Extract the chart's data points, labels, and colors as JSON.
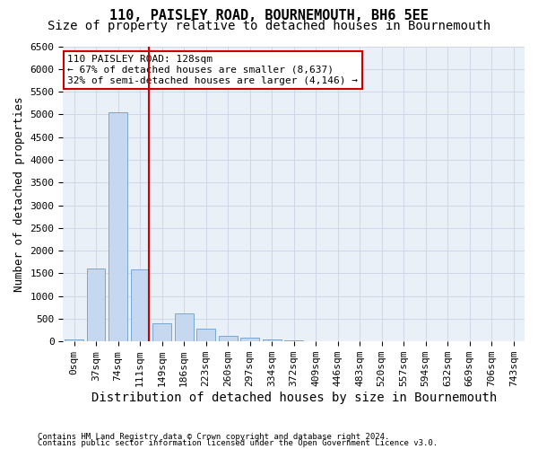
{
  "title": "110, PAISLEY ROAD, BOURNEMOUTH, BH6 5EE",
  "subtitle": "Size of property relative to detached houses in Bournemouth",
  "xlabel": "Distribution of detached houses by size in Bournemouth",
  "ylabel": "Number of detached properties",
  "footer_line1": "Contains HM Land Registry data © Crown copyright and database right 2024.",
  "footer_line2": "Contains public sector information licensed under the Open Government Licence v3.0.",
  "bin_labels": [
    "0sqm",
    "37sqm",
    "74sqm",
    "111sqm",
    "149sqm",
    "186sqm",
    "223sqm",
    "260sqm",
    "297sqm",
    "334sqm",
    "372sqm",
    "409sqm",
    "446sqm",
    "483sqm",
    "520sqm",
    "557sqm",
    "594sqm",
    "632sqm",
    "669sqm",
    "706sqm",
    "743sqm"
  ],
  "bar_values": [
    50,
    1600,
    5050,
    1580,
    400,
    620,
    280,
    130,
    90,
    50,
    30,
    10,
    5,
    2,
    1,
    1,
    0,
    0,
    0,
    0,
    0
  ],
  "bar_color": "#c5d8f0",
  "bar_edge_color": "#7aa8d2",
  "vline_x": 3,
  "vline_color": "#cc0000",
  "annotation_text": "110 PAISLEY ROAD: 128sqm\n← 67% of detached houses are smaller (8,637)\n32% of semi-detached houses are larger (4,146) →",
  "annotation_box_color": "#cc0000",
  "ylim": [
    0,
    6500
  ],
  "yticks": [
    0,
    500,
    1000,
    1500,
    2000,
    2500,
    3000,
    3500,
    4000,
    4500,
    5000,
    5500,
    6000,
    6500
  ],
  "background_color": "#ffffff",
  "grid_color": "#d0d8e8",
  "axes_bg_color": "#eaf0f8",
  "title_fontsize": 11,
  "subtitle_fontsize": 10,
  "axis_label_fontsize": 9,
  "tick_fontsize": 8,
  "annotation_fontsize": 8,
  "footer_fontsize": 6.5
}
